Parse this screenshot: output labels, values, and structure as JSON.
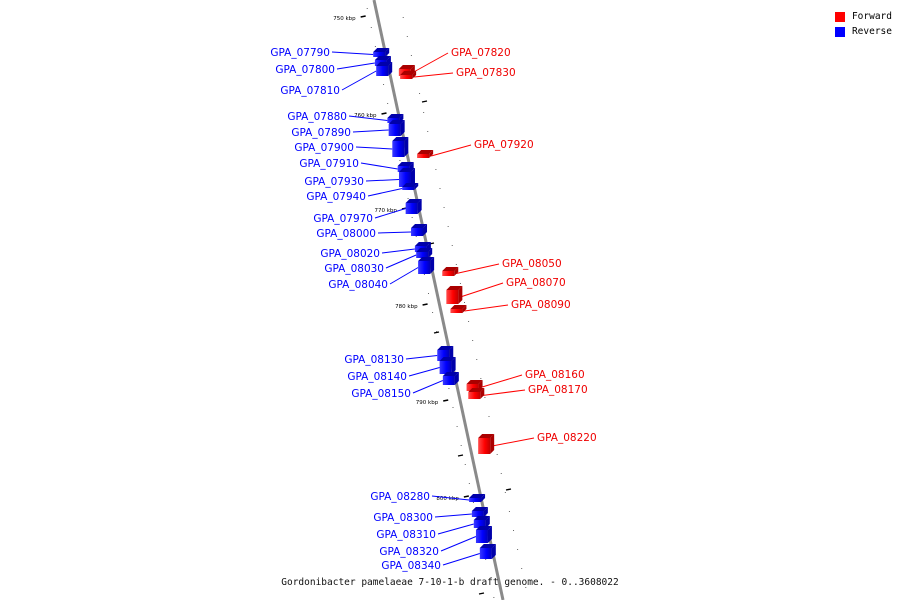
{
  "legend": {
    "forward": {
      "label": "Forward",
      "color": "#ff0000"
    },
    "reverse": {
      "label": "Reverse",
      "color": "#0000ff"
    }
  },
  "caption": "Gordonibacter pamelaeae 7-10-1-b draft genome. - 0..3608022",
  "axis_ticks": [
    "750 kbp",
    "760 kbp",
    "770 kbp",
    "780 kbp",
    "790 kbp",
    "800 kbp"
  ],
  "genes_reverse": [
    "GPA_07790",
    "GPA_07800",
    "GPA_07810",
    "GPA_07880",
    "GPA_07890",
    "GPA_07900",
    "GPA_07910",
    "GPA_07930",
    "GPA_07940",
    "GPA_07970",
    "GPA_08000",
    "GPA_08020",
    "GPA_08030",
    "GPA_08040",
    "GPA_08130",
    "GPA_08140",
    "GPA_08150",
    "GPA_08280",
    "GPA_08300",
    "GPA_08310",
    "GPA_08320",
    "GPA_08340"
  ],
  "genes_forward": [
    "GPA_07820",
    "GPA_07830",
    "GPA_07920",
    "GPA_08050",
    "GPA_08070",
    "GPA_08090",
    "GPA_08160",
    "GPA_08170",
    "GPA_08220"
  ]
}
